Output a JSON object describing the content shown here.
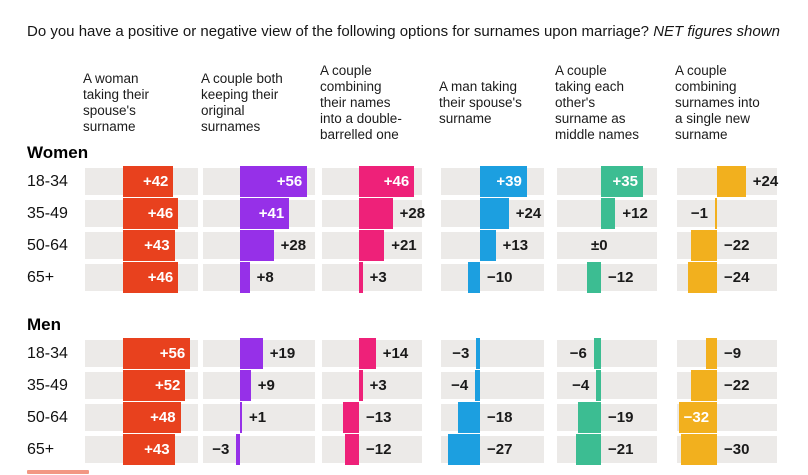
{
  "title": {
    "text": "Do you have a positive or negative view of the following options for surnames upon marriage?",
    "emphasis": "NET figures shown"
  },
  "chart_data": {
    "type": "bar",
    "orientation": "horizontal",
    "track_color": "#ECEAE8",
    "label_color": "#1a1a1a",
    "inside_label_color": "#ffffff",
    "columns": [
      {
        "key": "woman-taking-spouses-surname",
        "label": "A woman\ntaking their\nspouse's\nsurname",
        "color": "#E8411E"
      },
      {
        "key": "couple-keeping-original-surnames",
        "label": "A couple both\nkeeping their\noriginal\nsurnames",
        "color": "#9630E8"
      },
      {
        "key": "double-barrelled-name",
        "label": "A couple\ncombining\ntheir names\ninto a double-\nbarrelled one",
        "color": "#EE2179"
      },
      {
        "key": "man-taking-spouses-surname",
        "label": "A man taking\ntheir spouse's\nsurname",
        "color": "#1C9FE0"
      },
      {
        "key": "each-others-surname-as-middle-names",
        "label": "A couple\ntaking each\nother's\nsurname as\nmiddle names",
        "color": "#3CBD92"
      },
      {
        "key": "combined-single-new-surname",
        "label": "A couple\ncombining\nsurnames into\na single new\nsurname",
        "color": "#F2B01E"
      }
    ],
    "groups": [
      {
        "label": "Women",
        "rows": [
          {
            "age": "18-34",
            "cells": [
              {
                "v": 42,
                "d": "+42",
                "side": "in"
              },
              {
                "v": 56,
                "d": "+56",
                "side": "in"
              },
              {
                "v": 46,
                "d": "+46",
                "side": "in"
              },
              {
                "v": 39,
                "d": "+39",
                "side": "in"
              },
              {
                "v": 35,
                "d": "+35",
                "side": "in"
              },
              {
                "v": 24,
                "d": "+24",
                "side": "right"
              }
            ]
          },
          {
            "age": "35-49",
            "cells": [
              {
                "v": 46,
                "d": "+46",
                "side": "in"
              },
              {
                "v": 41,
                "d": "+41",
                "side": "in"
              },
              {
                "v": 28,
                "d": "+28",
                "side": "right"
              },
              {
                "v": 24,
                "d": "+24",
                "side": "right"
              },
              {
                "v": 12,
                "d": "+12",
                "side": "right"
              },
              {
                "v": -1,
                "d": "−1",
                "side": "left"
              }
            ]
          },
          {
            "age": "50-64",
            "cells": [
              {
                "v": 43,
                "d": "+43",
                "side": "in"
              },
              {
                "v": 28,
                "d": "+28",
                "side": "right"
              },
              {
                "v": 21,
                "d": "+21",
                "side": "right"
              },
              {
                "v": 13,
                "d": "+13",
                "side": "right"
              },
              {
                "v": 0,
                "d": "±0",
                "side": "zero"
              },
              {
                "v": -22,
                "d": "−22",
                "side": "right"
              }
            ]
          },
          {
            "age": "65+",
            "cells": [
              {
                "v": 46,
                "d": "+46",
                "side": "in"
              },
              {
                "v": 8,
                "d": "+8",
                "side": "right"
              },
              {
                "v": 3,
                "d": "+3",
                "side": "right"
              },
              {
                "v": -10,
                "d": "−10",
                "side": "right"
              },
              {
                "v": -12,
                "d": "−12",
                "side": "right"
              },
              {
                "v": -24,
                "d": "−24",
                "side": "right"
              }
            ]
          }
        ]
      },
      {
        "label": "Men",
        "rows": [
          {
            "age": "18-34",
            "cells": [
              {
                "v": 56,
                "d": "+56",
                "side": "in"
              },
              {
                "v": 19,
                "d": "+19",
                "side": "right"
              },
              {
                "v": 14,
                "d": "+14",
                "side": "right"
              },
              {
                "v": -3,
                "d": "−3",
                "side": "left"
              },
              {
                "v": -6,
                "d": "−6",
                "side": "left"
              },
              {
                "v": -9,
                "d": "−9",
                "side": "right"
              }
            ]
          },
          {
            "age": "35-49",
            "cells": [
              {
                "v": 52,
                "d": "+52",
                "side": "in"
              },
              {
                "v": 9,
                "d": "+9",
                "side": "right"
              },
              {
                "v": 3,
                "d": "+3",
                "side": "right"
              },
              {
                "v": -4,
                "d": "−4",
                "side": "left"
              },
              {
                "v": -4,
                "d": "−4",
                "side": "left"
              },
              {
                "v": -22,
                "d": "−22",
                "side": "right"
              }
            ]
          },
          {
            "age": "50-64",
            "cells": [
              {
                "v": 48,
                "d": "+48",
                "side": "in"
              },
              {
                "v": 1,
                "d": "+1",
                "side": "right"
              },
              {
                "v": -13,
                "d": "−13",
                "side": "right"
              },
              {
                "v": -18,
                "d": "−18",
                "side": "right"
              },
              {
                "v": -19,
                "d": "−19",
                "side": "right"
              },
              {
                "v": -32,
                "d": "−32",
                "side": "in"
              }
            ]
          },
          {
            "age": "65+",
            "cells": [
              {
                "v": 43,
                "d": "+43",
                "side": "in"
              },
              {
                "v": -3,
                "d": "−3",
                "side": "left"
              },
              {
                "v": -12,
                "d": "−12",
                "side": "right"
              },
              {
                "v": -27,
                "d": "−27",
                "side": "right"
              },
              {
                "v": -21,
                "d": "−21",
                "side": "right"
              },
              {
                "v": -30,
                "d": "−30",
                "side": "right"
              }
            ]
          }
        ]
      }
    ]
  },
  "footer": {
    "logo_fragment_color": "#E8411E"
  }
}
